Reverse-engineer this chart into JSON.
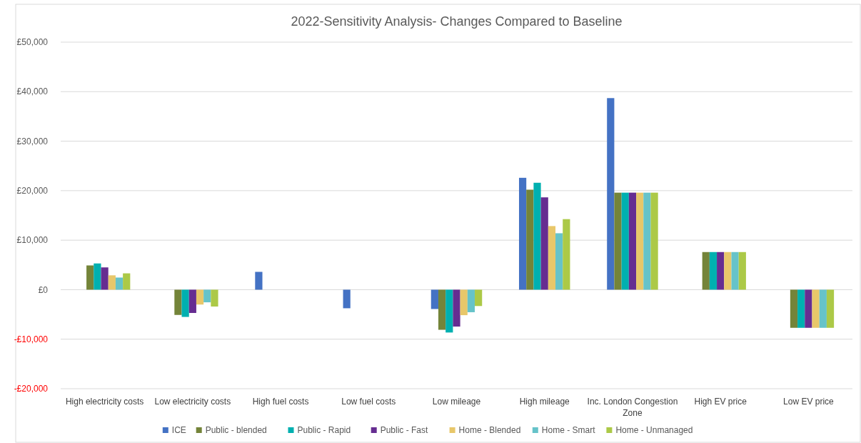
{
  "chart_data": {
    "type": "bar",
    "title": "2022-Sensitivity Analysis- Changes Compared to Baseline",
    "categories": [
      "High electricity costs",
      "Low electricity costs",
      "High fuel costs",
      "Low fuel costs",
      "Low mileage",
      "High mileage",
      "Inc. London Congestion Zone",
      "High EV price",
      "Low EV price"
    ],
    "series": [
      {
        "name": "ICE",
        "color": "#4472c4",
        "values": [
          null,
          null,
          3600,
          -3750,
          -3900,
          22600,
          38700,
          null,
          null
        ]
      },
      {
        "name": "Public - blended",
        "color": "#748439",
        "values": [
          4900,
          -5100,
          null,
          null,
          -8100,
          20200,
          19600,
          7600,
          -7700
        ]
      },
      {
        "name": "Public - Rapid",
        "color": "#00b0b0",
        "values": [
          5300,
          -5500,
          null,
          null,
          -8650,
          21600,
          19600,
          7600,
          -7700
        ]
      },
      {
        "name": "Public - Fast",
        "color": "#662d91",
        "values": [
          4500,
          -4700,
          null,
          null,
          -7450,
          18650,
          19600,
          7600,
          -7700
        ]
      },
      {
        "name": "Home - Blended",
        "color": "#e8c76a",
        "values": [
          2900,
          -3000,
          null,
          null,
          -5150,
          12850,
          19600,
          7600,
          -7700
        ]
      },
      {
        "name": "Home - Smart",
        "color": "#66c3c9",
        "values": [
          2450,
          -2550,
          null,
          null,
          -4550,
          11400,
          19600,
          7600,
          -7700
        ]
      },
      {
        "name": "Home - Unmanaged",
        "color": "#acc947",
        "values": [
          3300,
          -3400,
          null,
          null,
          -3300,
          14250,
          19600,
          7600,
          -7700
        ]
      }
    ],
    "ylim": [
      -20000,
      50000
    ],
    "yticks": [
      {
        "value": -20000,
        "label": "-£20,000"
      },
      {
        "value": -10000,
        "label": "-£10,000"
      },
      {
        "value": 0,
        "label": "£0"
      },
      {
        "value": 10000,
        "label": "£10,000"
      },
      {
        "value": 20000,
        "label": "£20,000"
      },
      {
        "value": 30000,
        "label": "£30,000"
      },
      {
        "value": 40000,
        "label": "£40,000"
      },
      {
        "value": 50000,
        "label": "£50,000"
      }
    ],
    "grid": "y",
    "legend": "bottom"
  }
}
